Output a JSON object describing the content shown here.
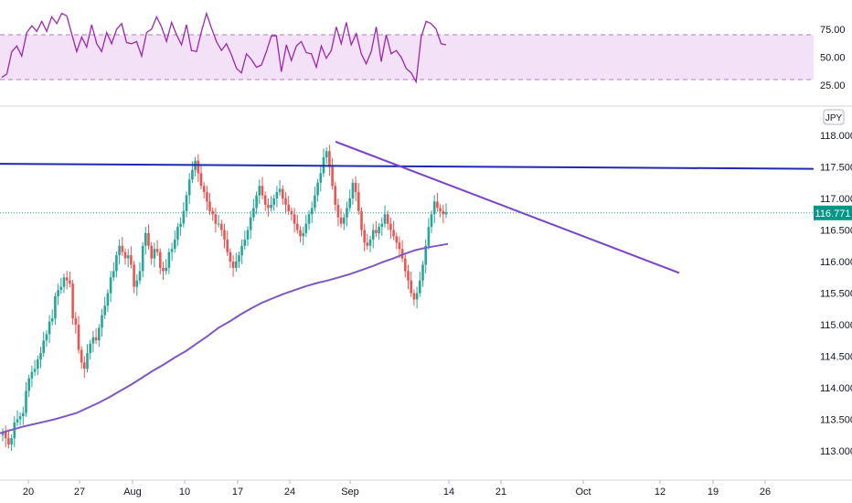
{
  "chart_data": [
    {
      "type": "line",
      "indicator": "RSI",
      "ylim": [
        10,
        95
      ],
      "band": [
        30,
        70
      ],
      "y_ticks": [
        "75.00",
        "50.00",
        "25.00"
      ],
      "y_tick_values": [
        75,
        50,
        25
      ],
      "colors": {
        "line": "#9c27b0",
        "band_fill": "#f2e1f7",
        "band_line": "#b279c4"
      },
      "series": [
        {
          "values": [
            32,
            35,
            55,
            60,
            51,
            72,
            78,
            73,
            82,
            73,
            86,
            80,
            89,
            87,
            71,
            55,
            68,
            59,
            79,
            62,
            55,
            72,
            62,
            75,
            80,
            63,
            62,
            64,
            51,
            72,
            75,
            86,
            77,
            64,
            81,
            70,
            61,
            79,
            56,
            55,
            73,
            89,
            76,
            64,
            56,
            62,
            52,
            40,
            36,
            53,
            48,
            41,
            43,
            55,
            69,
            69,
            37,
            61,
            47,
            60,
            64,
            54,
            53,
            41,
            60,
            49,
            56,
            77,
            62,
            81,
            61,
            71,
            53,
            44,
            55,
            77,
            46,
            70,
            53,
            56,
            50,
            40,
            36,
            28,
            68,
            82,
            80,
            75,
            62,
            61
          ]
        }
      ]
    },
    {
      "type": "candlestick",
      "currency": "JPY",
      "ylim": [
        112.8,
        118.3
      ],
      "y_ticks": [
        "118.000",
        "117.500",
        "117.000",
        "116.500",
        "116.000",
        "115.500",
        "115.000",
        "114.500",
        "114.000",
        "113.500",
        "113.000"
      ],
      "y_tick_values": [
        118,
        117.5,
        117,
        116.5,
        116,
        115.5,
        115,
        114.5,
        114,
        113.5,
        113
      ],
      "x_ticks": [
        "20",
        "27",
        "Aug",
        "10",
        "17",
        "24",
        "Sep",
        "14",
        "21",
        "Oct",
        "12",
        "19",
        "26"
      ],
      "last_price": "116.771",
      "last_value": 116.771,
      "colors": {
        "up": "#26a69a",
        "down": "#ef5350",
        "ma": "#7e57c2",
        "horizontal": "#1e2bb0",
        "trend": "#7b42c8",
        "last_bg": "#009688",
        "grid_dotted": "#26a69a"
      },
      "closes": [
        113.3,
        113.2,
        113.1,
        113.2,
        113.45,
        113.5,
        113.55,
        113.6,
        113.95,
        114.15,
        114.25,
        114.3,
        114.45,
        114.55,
        114.75,
        114.85,
        115.05,
        115.1,
        115.45,
        115.55,
        115.6,
        115.75,
        115.7,
        115.65,
        115.1,
        115.0,
        114.6,
        114.4,
        114.3,
        114.55,
        114.7,
        114.8,
        114.75,
        114.95,
        115.15,
        115.3,
        115.5,
        115.75,
        115.85,
        116.1,
        116.25,
        116.15,
        116.05,
        116.1,
        115.95,
        115.6,
        115.7,
        115.85,
        116.25,
        116.45,
        116.25,
        116.05,
        116.2,
        116.15,
        115.9,
        115.85,
        115.9,
        116.15,
        116.2,
        116.35,
        116.55,
        116.6,
        116.8,
        117.05,
        117.3,
        117.45,
        117.6,
        117.4,
        117.2,
        117.1,
        116.95,
        116.8,
        116.75,
        116.6,
        116.6,
        116.5,
        116.35,
        116.15,
        116.0,
        115.9,
        116.0,
        116.1,
        116.25,
        116.35,
        116.5,
        116.7,
        116.85,
        117.05,
        117.2,
        117.05,
        116.9,
        116.85,
        116.9,
        117.0,
        117.1,
        117.15,
        117.0,
        116.9,
        116.8,
        116.75,
        116.6,
        116.5,
        116.4,
        116.45,
        116.6,
        116.75,
        116.85,
        117.05,
        117.25,
        117.4,
        117.65,
        117.75,
        117.5,
        117.2,
        116.9,
        116.7,
        116.6,
        116.7,
        116.85,
        117.0,
        117.25,
        117.1,
        116.8,
        116.5,
        116.3,
        116.25,
        116.35,
        116.5,
        116.45,
        116.55,
        116.6,
        116.75,
        116.6,
        116.5,
        116.4,
        116.3,
        116.2,
        116.05,
        115.85,
        115.7,
        115.5,
        115.4,
        115.5,
        115.7,
        115.95,
        116.25,
        116.55,
        116.75,
        116.95,
        116.85,
        116.8,
        116.75,
        116.78
      ],
      "ma_values": [
        113.28,
        113.33,
        113.38,
        113.42,
        113.46,
        113.5,
        113.55,
        113.6,
        113.68,
        113.76,
        113.85,
        113.95,
        114.05,
        114.16,
        114.27,
        114.37,
        114.48,
        114.58,
        114.7,
        114.82,
        114.95,
        115.05,
        115.16,
        115.26,
        115.35,
        115.42,
        115.49,
        115.55,
        115.61,
        115.66,
        115.7,
        115.75,
        115.8,
        115.86,
        115.92,
        115.99,
        116.05,
        116.12,
        116.18,
        116.22,
        116.25,
        116.28
      ],
      "horizontal_level": 117.55,
      "horizontal_level_end": 117.47,
      "trendline_start": 117.9,
      "trendline_end": 115.82
    }
  ]
}
